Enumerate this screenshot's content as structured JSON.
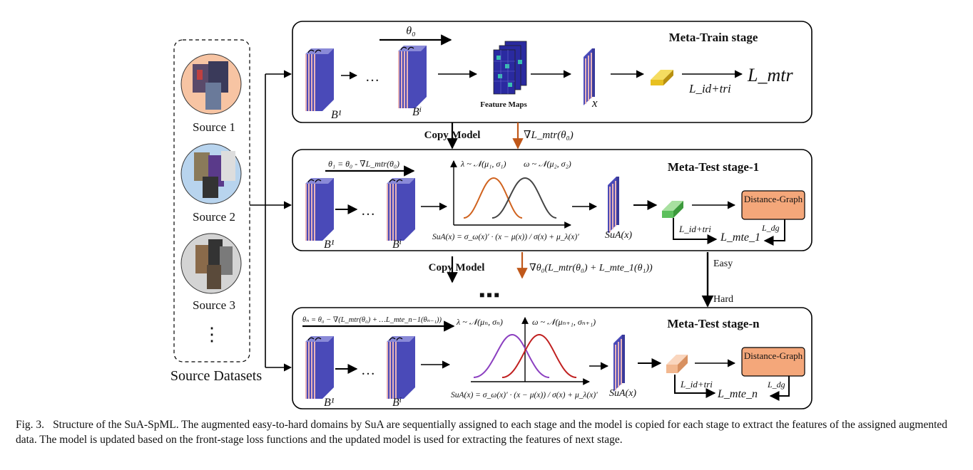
{
  "sources": {
    "title": "Source Datasets",
    "items": [
      "Source 1",
      "Source 2",
      "Source 3"
    ],
    "ellipsis": "⋮"
  },
  "stages": [
    {
      "title": "Meta-Train stage",
      "theta": "θ₀",
      "block_first": "B¹",
      "block_last": "Bⁱ",
      "dots": "…",
      "feature_maps": "Feature Maps",
      "x_label": "x",
      "loss_label": "L_id+tri",
      "output": "L_mtr"
    },
    {
      "title": "Meta-Test stage-1",
      "theta": "θ₁ = θ₀ - ∇L_mtr(θ₀)",
      "block_first": "B¹",
      "block_last": "Bⁱ",
      "dots": "…",
      "lambda": "λ ~ 𝒩(μ₁, σ₁)",
      "omega": "ω ~ 𝒩(μ₂, σ₂)",
      "sua_formula": "SuA(x) = σ_ω(x)′ · (x − μ(x)) / σ(x) + μ_λ(x)′",
      "sua_label": "SuA(x)",
      "dg_label": "Distance-Graph",
      "loss_idtri": "L_id+tri",
      "loss_dg": "L_dg",
      "output": "L_mte_1"
    },
    {
      "title": "Meta-Test stage-n",
      "theta": "θₙ = θ₀ − ∇(L_mtr(θ₀) + …L_mte_n−1(θₙ₋₁))",
      "block_first": "B¹",
      "block_last": "Bⁱ",
      "dots": "…",
      "lambda": "λ ~ 𝒩(μₙ, σₙ)",
      "omega": "ω ~ 𝒩(μₙ₊₁, σₙ₊₁)",
      "sua_formula": "SuA(x) = σ_ω(x)′ · (x − μ(x)) / σ(x) + μ_λ(x)′",
      "sua_label": "SuA(x)",
      "dg_label": "Distance-Graph",
      "loss_idtri": "L_id+tri",
      "loss_dg": "L_dg",
      "output": "L_mte_n"
    }
  ],
  "links": {
    "copy_model_1": "Copy Model",
    "grad_1": "∇L_mtr(θ₀)",
    "copy_model_2": "Copy Model",
    "grad_2": "∇θ₀(L_mtr(θ₀) + L_mte_1(θ₁))",
    "vdots": "■ ■ ■",
    "easy": "Easy",
    "hard": "Hard"
  },
  "caption": {
    "label": "Fig. 3.",
    "text": "Structure of the SuA-SpML. The augmented easy-to-hard domains by SuA are sequentially assigned to each stage and the model is copied for each stage to extract the features of the assigned augmented data. The model is updated based on the front-stage loss functions and the updated model is used for extracting the features of next stage."
  },
  "colors": {
    "block_face": "#4a4ab8",
    "block_stripe": "#e8b4b8",
    "feature_yellow": "#e8c020",
    "feature_green": "#5cc05c",
    "feature_peach": "#f2b890",
    "distance_graph": "#f4a77a",
    "grad_arrow": "#c0581a",
    "curve_orange": "#d0621e",
    "curve_gray": "#444444",
    "curve_purple": "#8b3fc0",
    "curve_red": "#c02020",
    "source1_bg": "#f7c4a3",
    "source2_bg": "#b8d4ee",
    "source3_bg": "#d4d4d4"
  }
}
